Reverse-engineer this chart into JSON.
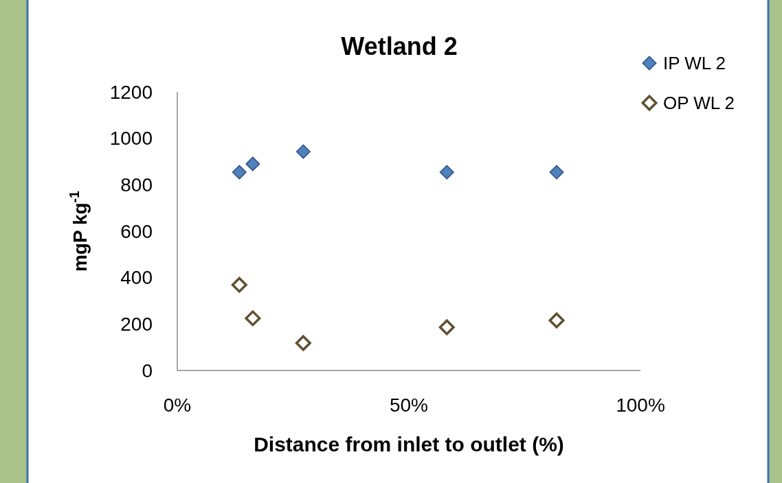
{
  "chart_data": {
    "type": "scatter",
    "title": "Wetland 2",
    "xlabel": "Distance from inlet to outlet (%)",
    "ylabel": "mgP kg$^{-1}$",
    "xlim": [
      0,
      100
    ],
    "xticks": [
      {
        "value": 0,
        "label": "0%"
      },
      {
        "value": 50,
        "label": "50%"
      },
      {
        "value": 100,
        "label": "100%"
      }
    ],
    "ylim": [
      0,
      1200
    ],
    "yticks": [
      0,
      200,
      400,
      600,
      800,
      1000,
      1200
    ],
    "grid": false,
    "legend": "top right",
    "marker": "diamond",
    "x": [
      13.4,
      16.3,
      27.2,
      58.2,
      81.9
    ],
    "series": [
      {
        "name": "IP WL 2",
        "color": "#4f81bd",
        "values": [
          854,
          890,
          943,
          854,
          854
        ]
      },
      {
        "name": "OP WL 2",
        "color": "#5e5030",
        "values": [
          369,
          225,
          118,
          186,
          216
        ]
      }
    ]
  }
}
